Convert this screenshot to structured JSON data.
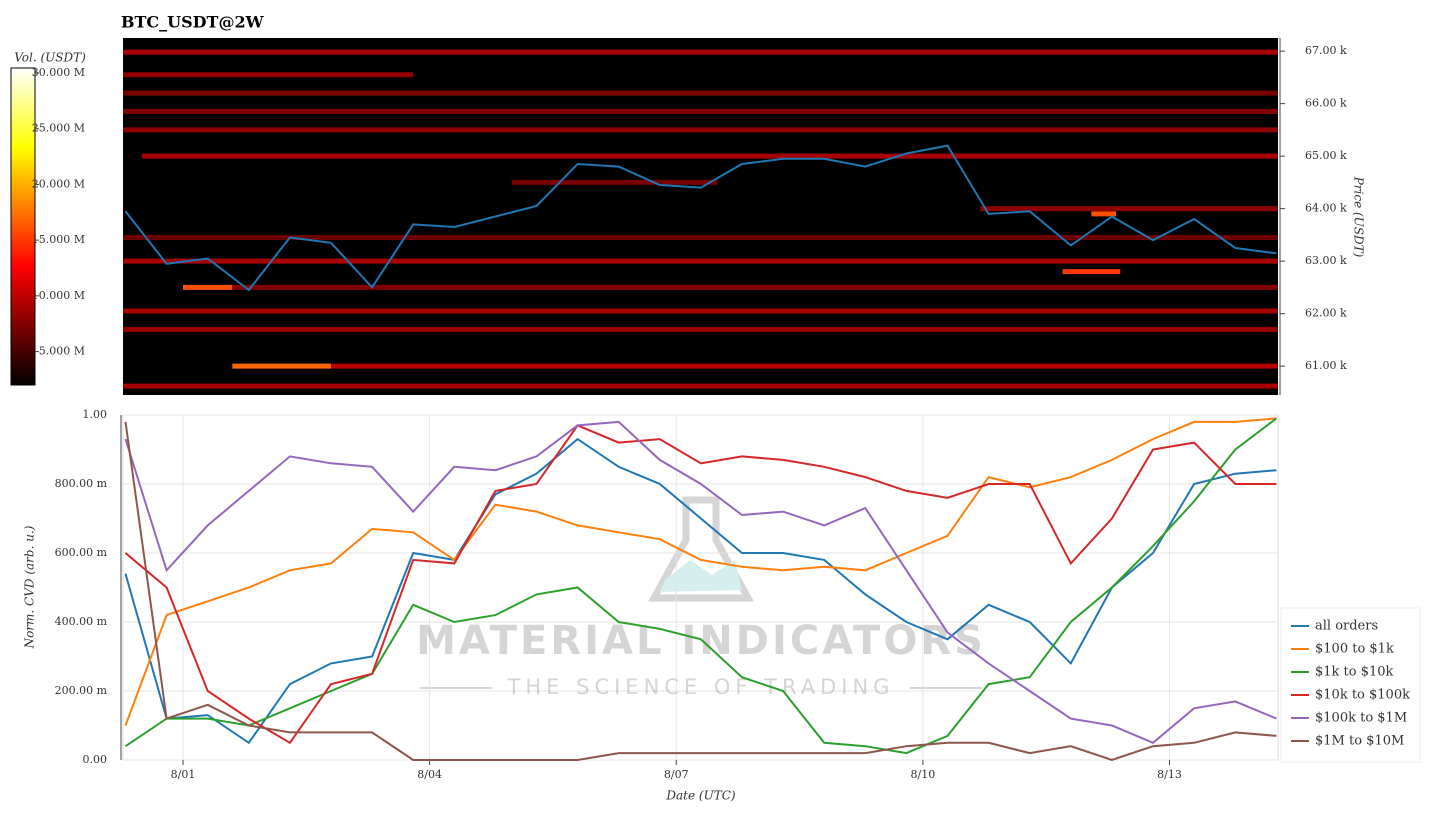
{
  "chart_data": [
    {
      "type": "heatmap",
      "title": "BTC_USDT@2W",
      "y_label": "Price (USDT)",
      "colorbar_label": "Vol. (USDT)",
      "colormap": "hot",
      "xlim": [
        0.27,
        14.32
      ],
      "ylim": [
        60450,
        67250
      ],
      "yticks": [
        {
          "value": 61000,
          "label": "61.00 k"
        },
        {
          "value": 62000,
          "label": "62.00 k"
        },
        {
          "value": 63000,
          "label": "63.00 k"
        },
        {
          "value": 64000,
          "label": "64.00 k"
        },
        {
          "value": 65000,
          "label": "65.00 k"
        },
        {
          "value": 66000,
          "label": "66.00 k"
        },
        {
          "value": 67000,
          "label": "67.00 k"
        }
      ],
      "clim": [
        2000000,
        30450000
      ],
      "cticks": [
        {
          "value": 5000000,
          "label": "5.000 M"
        },
        {
          "value": 10000000,
          "label": "10.000 M"
        },
        {
          "value": 15000000,
          "label": "15.000 M"
        },
        {
          "value": 20000000,
          "label": "20.000 M"
        },
        {
          "value": 25000000,
          "label": "25.000 M"
        },
        {
          "value": 30000000,
          "label": "30.000 M"
        }
      ],
      "cells": {
        "price": [
          66980,
          66550,
          66200,
          65850,
          65500,
          65000,
          64500,
          64000,
          63450,
          63000,
          62500,
          62500,
          62050,
          61700,
          61000,
          61000,
          60620,
          62800,
          63900
        ],
        "start": [
          0.27,
          0.27,
          0.27,
          0.27,
          0.27,
          0.5,
          5.0,
          10.7,
          0.27,
          0.27,
          1.0,
          1.6,
          0.27,
          0.27,
          1.6,
          2.8,
          0.27,
          11.7,
          12.05
        ],
        "end": [
          14.32,
          3.8,
          14.32,
          14.32,
          14.32,
          14.32,
          7.5,
          14.32,
          14.32,
          14.32,
          1.6,
          14.32,
          14.32,
          14.32,
          2.8,
          14.32,
          14.32,
          12.4,
          12.35
        ],
        "volume": [
          9000000,
          8000000,
          7000000,
          7500000,
          8000000,
          9000000,
          7000000,
          8000000,
          6500000,
          9000000,
          16000000,
          7500000,
          9000000,
          8500000,
          17000000,
          9500000,
          9000000,
          15000000,
          16000000
        ]
      },
      "line_color": "#1f77b4",
      "x": [
        0.3,
        0.8,
        1.3,
        1.8,
        2.3,
        2.8,
        3.3,
        3.8,
        4.3,
        4.8,
        5.3,
        5.8,
        6.3,
        6.8,
        7.3,
        7.8,
        8.3,
        8.8,
        9.3,
        9.8,
        10.3,
        10.8,
        11.3,
        11.8,
        12.3,
        12.8,
        13.3,
        13.8,
        14.3
      ],
      "price": [
        63950,
        62950,
        63050,
        62450,
        63450,
        63350,
        62500,
        63700,
        63650,
        63850,
        64050,
        64850,
        64800,
        64450,
        64400,
        64850,
        64950,
        64950,
        64800,
        65050,
        65200,
        63900,
        63950,
        63300,
        63850,
        63400,
        63800,
        63250,
        63150
      ]
    },
    {
      "type": "line",
      "x_label": "Date (UTC)",
      "y_label": "Norm. CVD (arb. u.)",
      "x": [
        0.3,
        0.8,
        1.3,
        1.8,
        2.3,
        2.8,
        3.3,
        3.8,
        4.3,
        4.8,
        5.3,
        5.8,
        6.3,
        6.8,
        7.3,
        7.8,
        8.3,
        8.8,
        9.3,
        9.8,
        10.3,
        10.8,
        11.3,
        11.8,
        12.3,
        12.8,
        13.3,
        13.8,
        14.3
      ],
      "xlim": [
        0.27,
        14.32
      ],
      "xticks": [
        {
          "value": 1,
          "label": "8/01"
        },
        {
          "value": 4,
          "label": "8/04"
        },
        {
          "value": 7,
          "label": "8/07"
        },
        {
          "value": 10,
          "label": "8/10"
        },
        {
          "value": 13,
          "label": "8/13"
        }
      ],
      "ylim": [
        0,
        1
      ],
      "yticks": [
        {
          "value": 0,
          "label": "0.00"
        },
        {
          "value": 0.2,
          "label": "200.00 m"
        },
        {
          "value": 0.4,
          "label": "400.00 m"
        },
        {
          "value": 0.6,
          "label": "600.00 m"
        },
        {
          "value": 0.8,
          "label": "800.00 m"
        },
        {
          "value": 1,
          "label": "1.00"
        }
      ],
      "grid": true,
      "legend": "lower right",
      "annotations": [
        "MATERIAL INDICATORS",
        "THE SCIENCE OF TRADING"
      ],
      "series": [
        {
          "name": "all orders",
          "color": "#1f77b4",
          "values": [
            0.54,
            0.12,
            0.13,
            0.05,
            0.22,
            0.28,
            0.3,
            0.6,
            0.58,
            0.77,
            0.83,
            0.93,
            0.85,
            0.8,
            0.7,
            0.6,
            0.6,
            0.58,
            0.48,
            0.4,
            0.35,
            0.45,
            0.4,
            0.28,
            0.5,
            0.6,
            0.8,
            0.83,
            0.84
          ]
        },
        {
          "name": "$100 to $1k",
          "color": "#ff7f0e",
          "values": [
            0.1,
            0.42,
            0.46,
            0.5,
            0.55,
            0.57,
            0.67,
            0.66,
            0.58,
            0.74,
            0.72,
            0.68,
            0.66,
            0.64,
            0.58,
            0.56,
            0.55,
            0.56,
            0.55,
            0.6,
            0.65,
            0.82,
            0.79,
            0.82,
            0.87,
            0.93,
            0.98,
            0.98,
            0.99
          ]
        },
        {
          "name": "$1k to $10k",
          "color": "#2ca02c",
          "values": [
            0.04,
            0.12,
            0.12,
            0.1,
            0.15,
            0.2,
            0.25,
            0.45,
            0.4,
            0.42,
            0.48,
            0.5,
            0.4,
            0.38,
            0.35,
            0.24,
            0.2,
            0.05,
            0.04,
            0.02,
            0.07,
            0.22,
            0.24,
            0.4,
            0.5,
            0.62,
            0.75,
            0.9,
            0.99
          ]
        },
        {
          "name": "$10k to $100k",
          "color": "#d62728",
          "values": [
            0.6,
            0.5,
            0.2,
            0.12,
            0.05,
            0.22,
            0.25,
            0.58,
            0.57,
            0.78,
            0.8,
            0.97,
            0.92,
            0.93,
            0.86,
            0.88,
            0.87,
            0.85,
            0.82,
            0.78,
            0.76,
            0.8,
            0.8,
            0.57,
            0.7,
            0.9,
            0.92,
            0.8,
            0.8
          ]
        },
        {
          "name": "$100k to $1M",
          "color": "#9467bd",
          "values": [
            0.93,
            0.55,
            0.68,
            0.78,
            0.88,
            0.86,
            0.85,
            0.72,
            0.85,
            0.84,
            0.88,
            0.97,
            0.98,
            0.87,
            0.8,
            0.71,
            0.72,
            0.68,
            0.73,
            0.55,
            0.37,
            0.28,
            0.2,
            0.12,
            0.1,
            0.05,
            0.15,
            0.17,
            0.12
          ]
        },
        {
          "name": "$1M to $10M",
          "color": "#8c564b",
          "values": [
            0.98,
            0.12,
            0.16,
            0.1,
            0.08,
            0.08,
            0.08,
            0,
            0,
            0,
            0,
            0,
            0.02,
            0.02,
            0.02,
            0.02,
            0.02,
            0.02,
            0.02,
            0.04,
            0.05,
            0.05,
            0.02,
            0.04,
            0,
            0.04,
            0.05,
            0.08,
            0.07
          ]
        }
      ]
    }
  ]
}
